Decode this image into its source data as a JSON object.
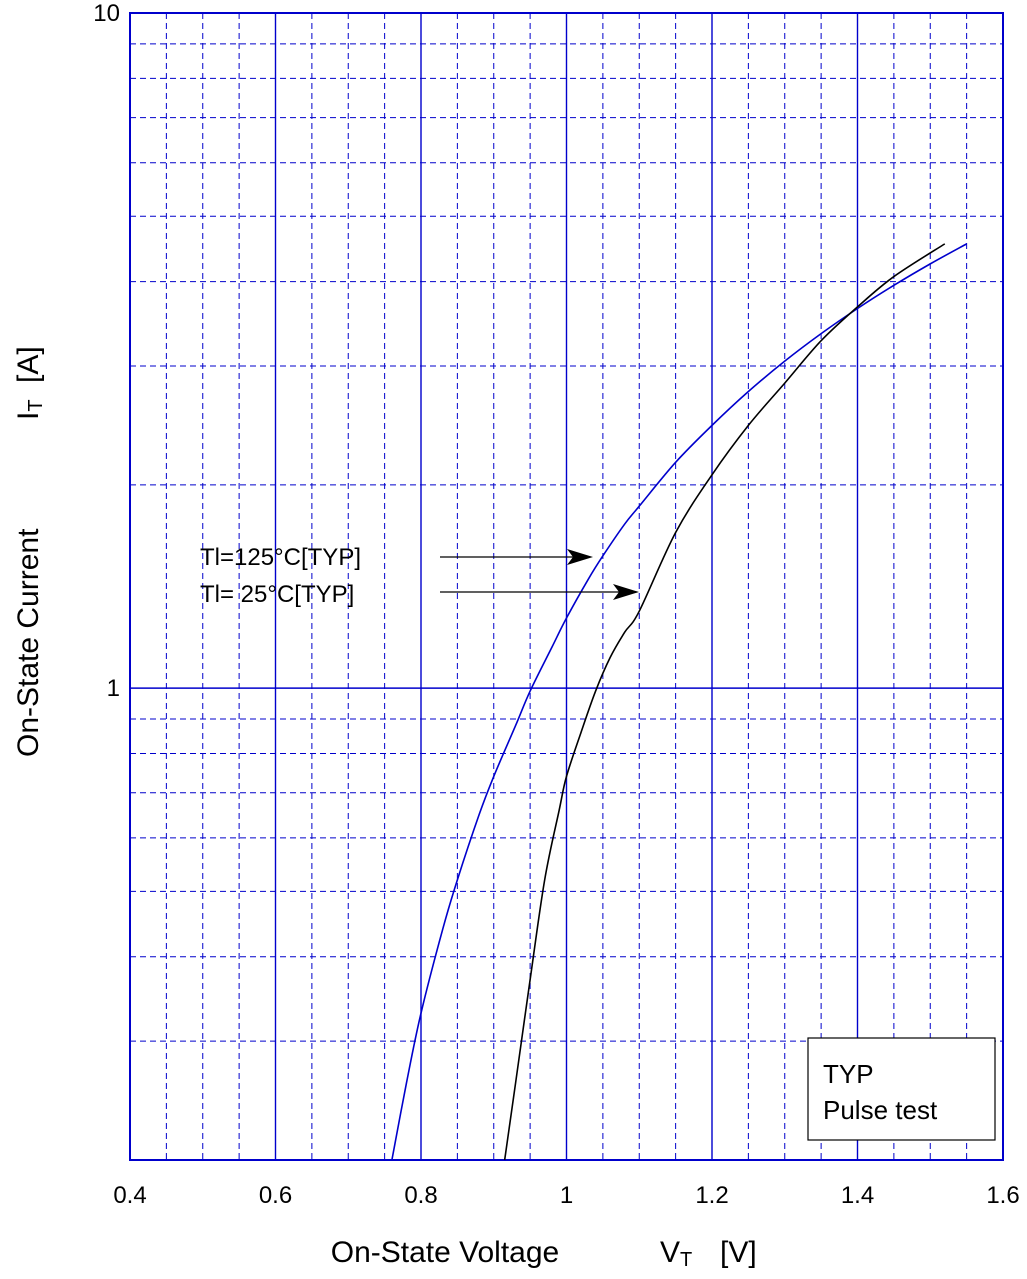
{
  "chart_data": {
    "type": "line",
    "xlabel": "On-State   Voltage",
    "xlabel_symbol": "V",
    "xlabel_sub": "T",
    "xlabel_unit": "[V]",
    "ylabel": "On-State  Current",
    "ylabel_symbol": "I",
    "ylabel_sub": "T",
    "ylabel_unit": "[A]",
    "xlim": [
      0.4,
      1.6
    ],
    "ylim": [
      0.2,
      10
    ],
    "yscale": "log",
    "grid": true,
    "x_major_ticks": [
      "0.4",
      "0.6",
      "0.8",
      "1",
      "1.2",
      "1.4",
      "1.6"
    ],
    "y_labeled_ticks": [
      "1",
      "10"
    ],
    "legend_box": {
      "lines": [
        "TYP",
        "Pulse test"
      ],
      "placement": "bottom-right"
    },
    "annotations": [
      {
        "text": "Tl=125°C[TYP]",
        "points_to_series": "Tl=125°C",
        "x": 1.04,
        "y": 1.45
      },
      {
        "text": "Tl= 25°C[TYP]",
        "points_to_series": "Tl=25°C",
        "x": 1.1,
        "y": 1.3
      }
    ],
    "series": [
      {
        "color": "#0000cc",
        "x": [
          0.76,
          0.78,
          0.8,
          0.83,
          0.85,
          0.88,
          0.9,
          0.93,
          0.95,
          0.98,
          1.0,
          1.03,
          1.05,
          1.08,
          1.1,
          1.15,
          1.2,
          1.25,
          1.3,
          1.35,
          1.4,
          1.45,
          1.5,
          1.55
        ],
        "y": [
          0.2,
          0.26,
          0.33,
          0.44,
          0.52,
          0.65,
          0.74,
          0.88,
          0.99,
          1.15,
          1.27,
          1.45,
          1.57,
          1.75,
          1.86,
          2.16,
          2.45,
          2.75,
          3.05,
          3.35,
          3.65,
          3.95,
          4.25,
          4.55
        ]
      },
      {
        "color": "#000000",
        "x": [
          0.915,
          0.93,
          0.95,
          0.97,
          0.99,
          1.0,
          1.02,
          1.04,
          1.06,
          1.08,
          1.1,
          1.15,
          1.2,
          1.25,
          1.3,
          1.35,
          1.4,
          1.45,
          1.52
        ],
        "y": [
          0.2,
          0.26,
          0.37,
          0.52,
          0.66,
          0.74,
          0.86,
          0.99,
          1.11,
          1.21,
          1.3,
          1.7,
          2.07,
          2.45,
          2.83,
          3.27,
          3.67,
          4.07,
          4.55
        ]
      }
    ]
  }
}
